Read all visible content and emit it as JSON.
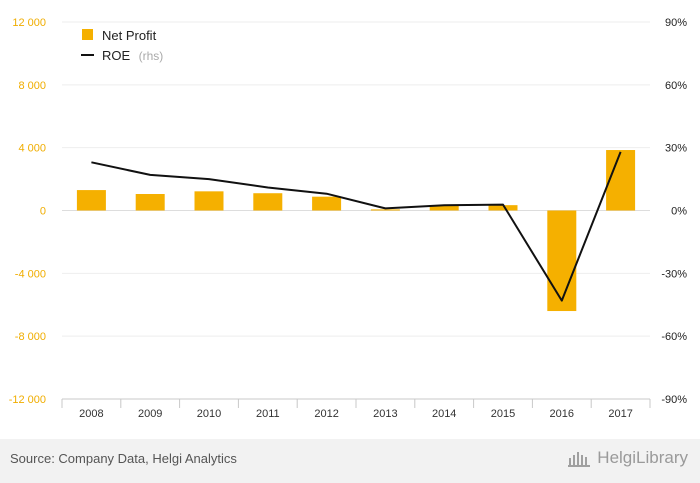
{
  "chart_data": {
    "type": "bar",
    "categories": [
      "2008",
      "2009",
      "2010",
      "2011",
      "2012",
      "2013",
      "2014",
      "2015",
      "2016",
      "2017"
    ],
    "series": [
      {
        "name": "Net Profit",
        "type": "bar",
        "axis": "left",
        "color": "#f5b000",
        "values": [
          1300,
          1050,
          1220,
          1100,
          880,
          70,
          300,
          340,
          -6400,
          3850
        ]
      },
      {
        "name": "ROE",
        "type": "line",
        "axis": "right",
        "color": "#111111",
        "values": [
          23,
          17,
          15,
          11,
          8,
          1,
          2.5,
          2.8,
          -43,
          28
        ]
      }
    ],
    "left_axis": {
      "min": -12000,
      "max": 12000,
      "ticks": [
        12000,
        8000,
        4000,
        0,
        -4000,
        -8000,
        -12000
      ],
      "tick_labels": [
        "12 000",
        "8 000",
        "4 000",
        "0",
        "-4 000",
        "-8 000",
        "-12 000"
      ]
    },
    "right_axis": {
      "min": -90,
      "max": 90,
      "ticks": [
        90,
        60,
        30,
        0,
        -30,
        -60,
        -90
      ],
      "tick_labels": [
        "90%",
        "60%",
        "30%",
        "0%",
        "-30%",
        "-60%",
        "-90%"
      ]
    },
    "legend": {
      "position": "top-left",
      "items": [
        {
          "label": "Net Profit",
          "note": "",
          "swatch": "square",
          "color": "#f5b000"
        },
        {
          "label": "ROE",
          "note": "(rhs)",
          "swatch": "line",
          "color": "#111111"
        }
      ]
    },
    "grid": true,
    "title": "",
    "xlabel": "",
    "ylabel": ""
  },
  "footer": {
    "source": "Source: Company Data, Helgi Analytics",
    "brand": "HelgiLibrary"
  }
}
